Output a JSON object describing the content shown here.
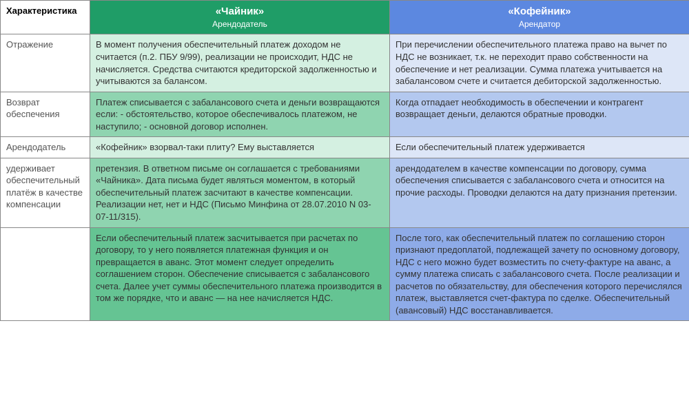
{
  "colors": {
    "teapot_header": "#1f9d67",
    "coffee_header": "#5c88e0",
    "teapot_bg_1": "#d4f0e1",
    "teapot_bg_2": "#8fd4b0",
    "teapot_bg_3": "#d4f0e1",
    "teapot_bg_4": "#8fd4b0",
    "teapot_bg_5": "#65c493",
    "coffee_bg_1": "#dde6f7",
    "coffee_bg_2": "#b3c8ef",
    "coffee_bg_3": "#dde6f7",
    "coffee_bg_4": "#b3c8ef",
    "coffee_bg_5": "#8eabe8"
  },
  "header": {
    "char": "Характеристика",
    "teapot_title": "«Чайник»",
    "teapot_sub": "Арендодатель",
    "coffee_title": "«Кофейник»",
    "coffee_sub": "Арендатор"
  },
  "rows": {
    "r1": {
      "char": "Отражение",
      "teapot": "В момент получения обеспечительный платеж доходом не считается (п.2. ПБУ 9/99), реализации не происходит, НДС не начисляется. Средства считаются кредиторской задолженностью и учитываются за балансом.",
      "coffee": "При перечислении обеспечительного платежа право на вычет по НДС не возникает, т.к. не переходит право собственности на обеспечение и нет реализации. Сумма платежа учитывается на забалансовом счете и считается дебиторской задолженностью."
    },
    "r2": {
      "char": "Возврат обеспечения",
      "teapot": "Платеж списывается с забалансового счета и деньги возвращаются если:\n-  обстоятельство, которое обеспечивалось  платежом, не наступило;\n-  основной договор исполнен.",
      "coffee": "Когда отпадает необходимость в обеспечении и контрагент возвращает деньги, делаются обратные проводки."
    },
    "r3": {
      "char": "Арендодатель",
      "teapot": "«Кофейник» взорвал-таки плиту? Ему выставляется",
      "coffee": "Если  обеспечительный платеж удерживается"
    },
    "r4": {
      "char": "удерживает обеспечительный платёж в качестве компенсации",
      "teapot": "претензия. В ответном письме он соглашается с требованиями «Чайника». Дата письма будет являться моментом, в  который обеспечительный платеж засчитают в качестве компенсации. Реализации нет, нет и НДС (Письмо Минфина от 28.07.2010 N 03-07-11/315).",
      "coffee": "арендодателем в качестве компенсации по договору, сумма обеспечения списывается с забалансового счета и относится на прочие расходы.  Проводки делаются на дату признания претензии."
    },
    "r5": {
      "char": "",
      "teapot": "Если обеспечительный платеж засчитывается при расчетах по договору, то у него появляется платежная функция и он превращается в аванс. Этот момент следует определить соглашением сторон. Обеспечение списывается с забалансового счета. Далее учет суммы обеспечительного платежа производится в том же порядке, что и аванс — на нее начисляется НДС.",
      "coffee": "После того, как обеспечительный платеж по соглашению сторон признают предоплатой, подлежащей зачету по основному договору,  НДС с него можно будет возместить по счету-фактуре на аванс, а сумму платежа списать с забалансового счета. После реализации и расчетов по обязательству, для обеспечения которого перечислялся платеж, выставляется счет-фактура по сделке. Обеспечительный (авансовый) НДС восстанавливается."
    }
  }
}
